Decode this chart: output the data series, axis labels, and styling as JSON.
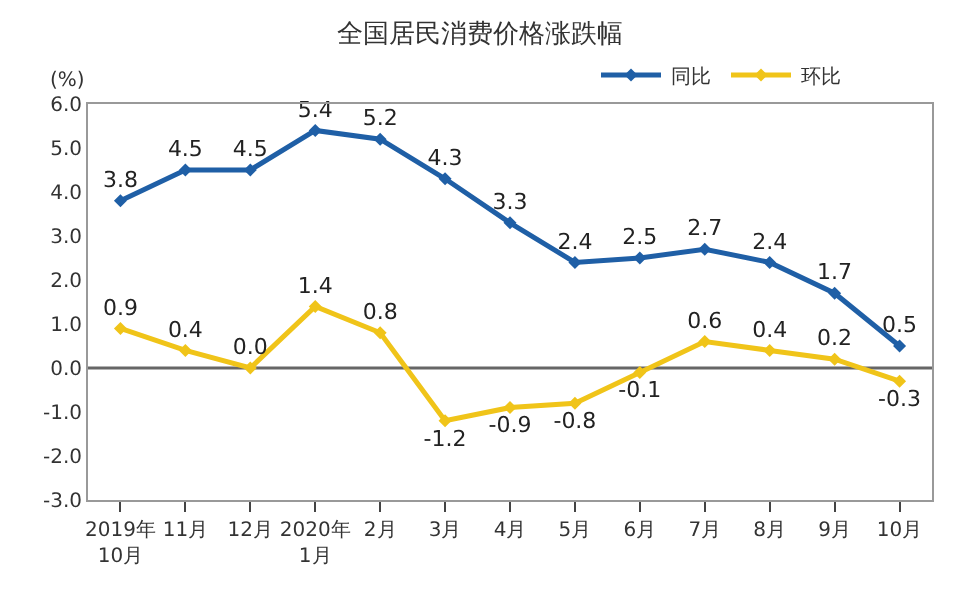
{
  "chart_data": {
    "type": "line",
    "title": "全国居民消费价格涨跌幅",
    "ylabel": "(%)",
    "categories": [
      "2019年\n10月",
      "11月",
      "12月",
      "2020年\n1月",
      "2月",
      "3月",
      "4月",
      "5月",
      "6月",
      "7月",
      "8月",
      "9月",
      "10月"
    ],
    "series": [
      {
        "name": "同比",
        "color": "#1f5fa6",
        "values": [
          3.8,
          4.5,
          4.5,
          5.4,
          5.2,
          4.3,
          3.3,
          2.4,
          2.5,
          2.7,
          2.4,
          1.7,
          0.5
        ],
        "value_labels": [
          "3.8",
          "4.5",
          "4.5",
          "5.4",
          "5.2",
          "4.3",
          "3.3",
          "2.4",
          "2.5",
          "2.7",
          "2.4",
          "1.7",
          "0.5"
        ]
      },
      {
        "name": "环比",
        "color": "#f0c419",
        "values": [
          0.9,
          0.4,
          0.0,
          1.4,
          0.8,
          -1.2,
          -0.9,
          -0.8,
          -0.1,
          0.6,
          0.4,
          0.2,
          -0.3
        ],
        "value_labels": [
          "0.9",
          "0.4",
          "0.0",
          "1.4",
          "0.8",
          "-1.2",
          "-0.9",
          "-0.8",
          "-0.1",
          "0.6",
          "0.4",
          "0.2",
          "-0.3"
        ]
      }
    ],
    "ylim": [
      -3,
      6
    ],
    "yticks": [
      {
        "value": -3,
        "label": "-3.0"
      },
      {
        "value": -2,
        "label": "-2.0"
      },
      {
        "value": -1,
        "label": "-1.0"
      },
      {
        "value": 0,
        "label": "0.0"
      },
      {
        "value": 1,
        "label": "1.0"
      },
      {
        "value": 2,
        "label": "2.0"
      },
      {
        "value": 3,
        "label": "3.0"
      },
      {
        "value": 4,
        "label": "4.0"
      },
      {
        "value": 5,
        "label": "5.0"
      },
      {
        "value": 6,
        "label": "6.0"
      }
    ],
    "ref_lines": [
      {
        "axis": "y",
        "value": 0,
        "color": "#666666"
      }
    ],
    "legend": "top right",
    "marker": "diamond",
    "grid": false
  }
}
